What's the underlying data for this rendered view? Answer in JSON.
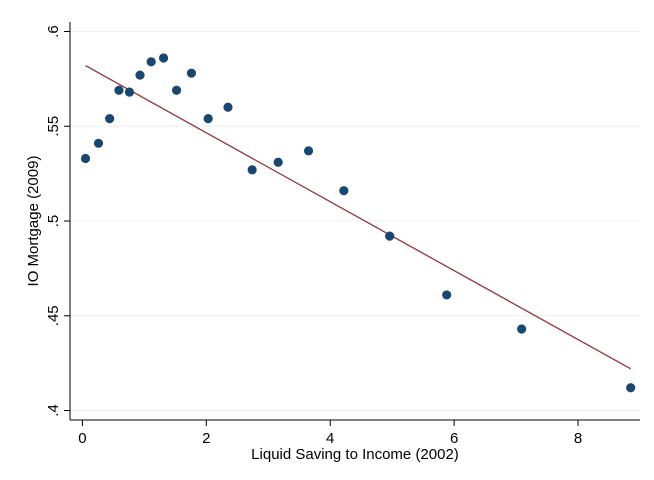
{
  "chart_data": {
    "type": "scatter",
    "title": "",
    "xlabel": "Liquid Saving to Income (2002)",
    "ylabel": "IO Mortgage (2009)",
    "xlim": [
      -0.2,
      9.0
    ],
    "ylim": [
      0.395,
      0.605
    ],
    "x_ticks": [
      0,
      2,
      4,
      6,
      8
    ],
    "x_tick_labels": [
      "0",
      "2",
      "4",
      "6",
      "8"
    ],
    "y_ticks": [
      0.4,
      0.45,
      0.5,
      0.55,
      0.6
    ],
    "y_tick_labels": [
      ".4",
      ".45",
      ".5",
      ".55",
      ".6"
    ],
    "grid": "horizontal",
    "points": [
      {
        "x": 0.05,
        "y": 0.533
      },
      {
        "x": 0.26,
        "y": 0.541
      },
      {
        "x": 0.44,
        "y": 0.554
      },
      {
        "x": 0.59,
        "y": 0.569
      },
      {
        "x": 0.76,
        "y": 0.568
      },
      {
        "x": 0.93,
        "y": 0.577
      },
      {
        "x": 1.11,
        "y": 0.584
      },
      {
        "x": 1.31,
        "y": 0.586
      },
      {
        "x": 1.52,
        "y": 0.569
      },
      {
        "x": 1.76,
        "y": 0.578
      },
      {
        "x": 2.03,
        "y": 0.554
      },
      {
        "x": 2.35,
        "y": 0.56
      },
      {
        "x": 2.74,
        "y": 0.527
      },
      {
        "x": 3.16,
        "y": 0.531
      },
      {
        "x": 3.65,
        "y": 0.537
      },
      {
        "x": 4.22,
        "y": 0.516
      },
      {
        "x": 4.96,
        "y": 0.492
      },
      {
        "x": 5.88,
        "y": 0.461
      },
      {
        "x": 7.09,
        "y": 0.443
      },
      {
        "x": 8.85,
        "y": 0.412
      }
    ],
    "fit_line": {
      "x": [
        0.05,
        8.85
      ],
      "y": [
        0.582,
        0.422
      ]
    },
    "colors": {
      "points": "#1a476f",
      "fit_line": "#90353b",
      "grid": "#eaf2f3"
    }
  }
}
